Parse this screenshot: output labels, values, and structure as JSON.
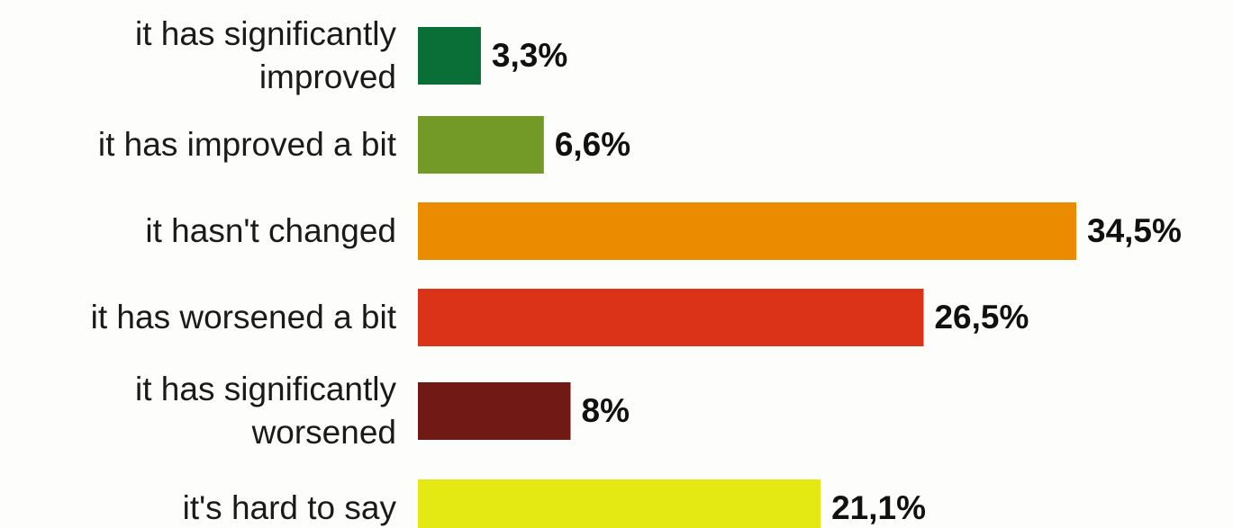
{
  "chart_data": {
    "type": "barh",
    "categories": [
      "it has significantly improved",
      "it has improved a bit",
      "it hasn't changed",
      "it has worsened a bit",
      "it has significantly worsened",
      "it's hard to say"
    ],
    "values": [
      3.3,
      6.6,
      34.5,
      26.5,
      8,
      21.1
    ],
    "value_labels": [
      "3,3%",
      "6,6%",
      "34,5%",
      "26,5%",
      "8%",
      "21,1%"
    ],
    "colors": [
      "#0a6e37",
      "#739a27",
      "#eb8c00",
      "#db3318",
      "#711915",
      "#e4e913"
    ]
  }
}
